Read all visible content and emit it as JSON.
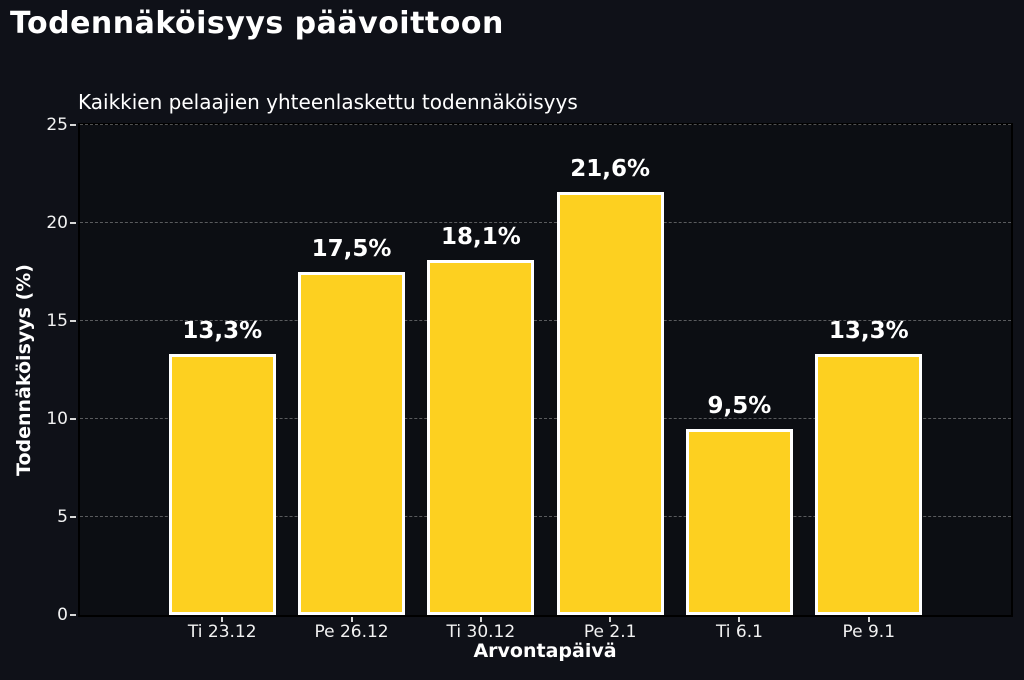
{
  "chart_data": {
    "type": "bar",
    "title": "Todennäköisyys päävoittoon",
    "subtitle": "Kaikkien pelaajien yhteenlaskettu todennäköisyys",
    "xlabel": "Arvontapäivä",
    "ylabel": "Todennäköisyys (%)",
    "categories": [
      "Ti 23.12",
      "Pe 26.12",
      "Ti 30.12",
      "Pe 2.1",
      "Ti 6.1",
      "Pe 9.1"
    ],
    "values": [
      13.3,
      17.5,
      18.1,
      21.6,
      9.5,
      13.3
    ],
    "value_labels": [
      "13,3%",
      "17,5%",
      "18,1%",
      "21,6%",
      "9,5%",
      "13,3%"
    ],
    "ylim": [
      0,
      25
    ],
    "yticks": [
      0,
      5,
      10,
      15,
      20,
      25
    ],
    "ytick_labels": [
      "0",
      "5",
      "10",
      "15",
      "20",
      "25"
    ],
    "grid": "horizontal-dashed",
    "legend": "none",
    "colors": {
      "background": "#0F1118",
      "plot_background": "#0C0E13",
      "bar_fill": "#FDD020",
      "bar_edge": "#FFFFFF",
      "text": "#FFFFFF",
      "gridline": "rgba(255,255,255,0.32)",
      "spine": "#000000"
    }
  }
}
